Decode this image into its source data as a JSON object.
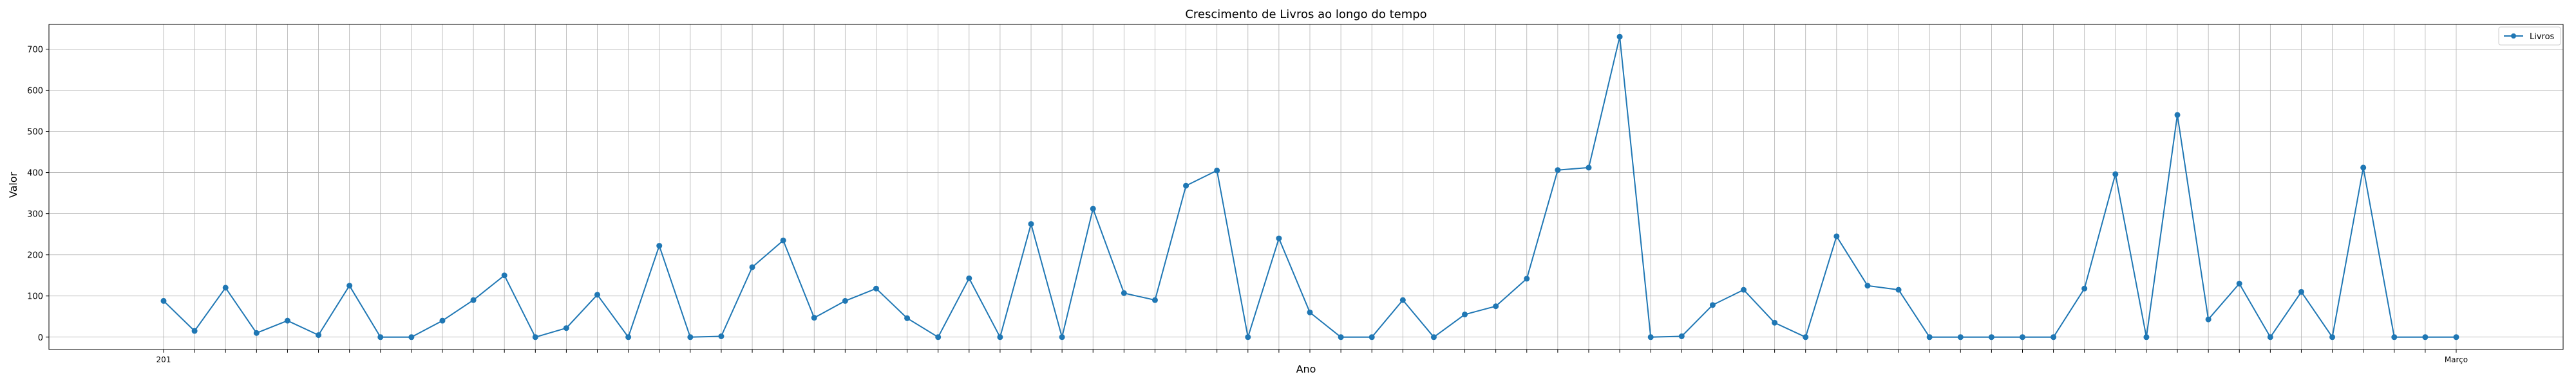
{
  "chart_data": {
    "type": "line",
    "title": "Crescimento de Livros ao longo do tempo",
    "xlabel": "Ano",
    "ylabel": "Valor",
    "ylim": [
      -30,
      760
    ],
    "yticks": [
      0,
      100,
      200,
      300,
      400,
      500,
      600,
      700
    ],
    "grid": true,
    "legend_position": "top-right",
    "line_color": "#1f77b4",
    "marker": "circle",
    "x_tick_note": "x tick labels are densely overlapping and unreadable except the first and last",
    "first_x_label_fragment": "201",
    "last_x_label_fragment": "Março",
    "series": [
      {
        "name": "Livros",
        "values": [
          88,
          15,
          120,
          10,
          40,
          5,
          125,
          0,
          0,
          40,
          90,
          150,
          0,
          22,
          103,
          0,
          222,
          0,
          2,
          170,
          235,
          47,
          88,
          118,
          46,
          0,
          143,
          0,
          275,
          0,
          312,
          107,
          90,
          368,
          405,
          0,
          240,
          60,
          0,
          0,
          90,
          0,
          55,
          75,
          142,
          406,
          412,
          730,
          0,
          2,
          78,
          115,
          35,
          0,
          245,
          125,
          115,
          0,
          0,
          0,
          0,
          0,
          118,
          396,
          0,
          540,
          43,
          130,
          0,
          110,
          0,
          412,
          0,
          0,
          0
        ]
      }
    ]
  }
}
